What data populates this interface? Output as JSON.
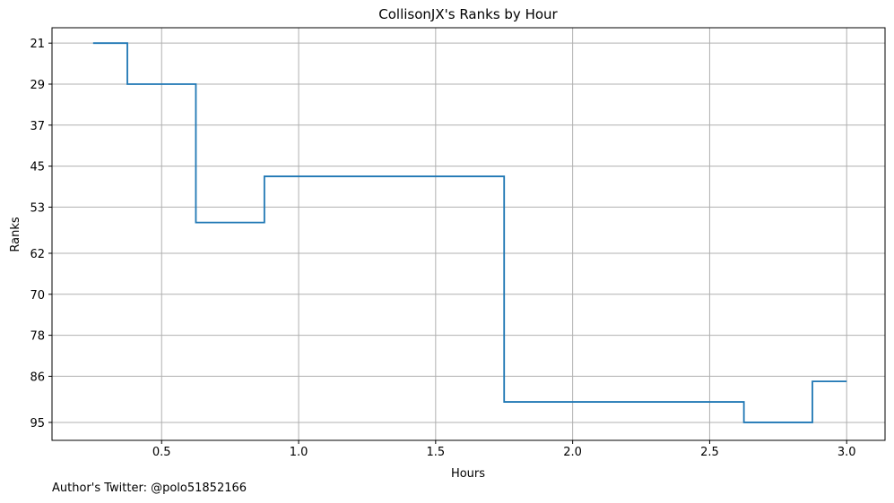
{
  "chart_data": {
    "type": "line",
    "drawstyle": "steps",
    "title": "CollisonJX's Ranks by Hour",
    "xlabel": "Hours",
    "ylabel": "Ranks",
    "xlim": [
      0.1,
      3.14
    ],
    "ylim": [
      18.0,
      98.5
    ],
    "y_inverted": true,
    "x_ticks": [
      0.5,
      1.0,
      1.5,
      2.0,
      2.5,
      3.0
    ],
    "x_tick_labels": [
      "0.5",
      "1.0",
      "1.5",
      "2.0",
      "2.5",
      "3.0"
    ],
    "y_ticks": [
      21,
      29,
      37,
      45,
      53,
      62,
      70,
      78,
      86,
      95
    ],
    "y_tick_labels": [
      "21",
      "29",
      "37",
      "45",
      "53",
      "62",
      "70",
      "78",
      "86",
      "95"
    ],
    "grid": true,
    "series": [
      {
        "color": "#1f77b4",
        "x": [
          0.25,
          0.375,
          0.625,
          0.875,
          1.75,
          2.625,
          2.875,
          3.0
        ],
        "y": [
          21,
          29,
          56,
          47,
          91,
          95,
          87,
          87
        ]
      }
    ]
  },
  "footer": "Author's Twitter: @polo51852166"
}
